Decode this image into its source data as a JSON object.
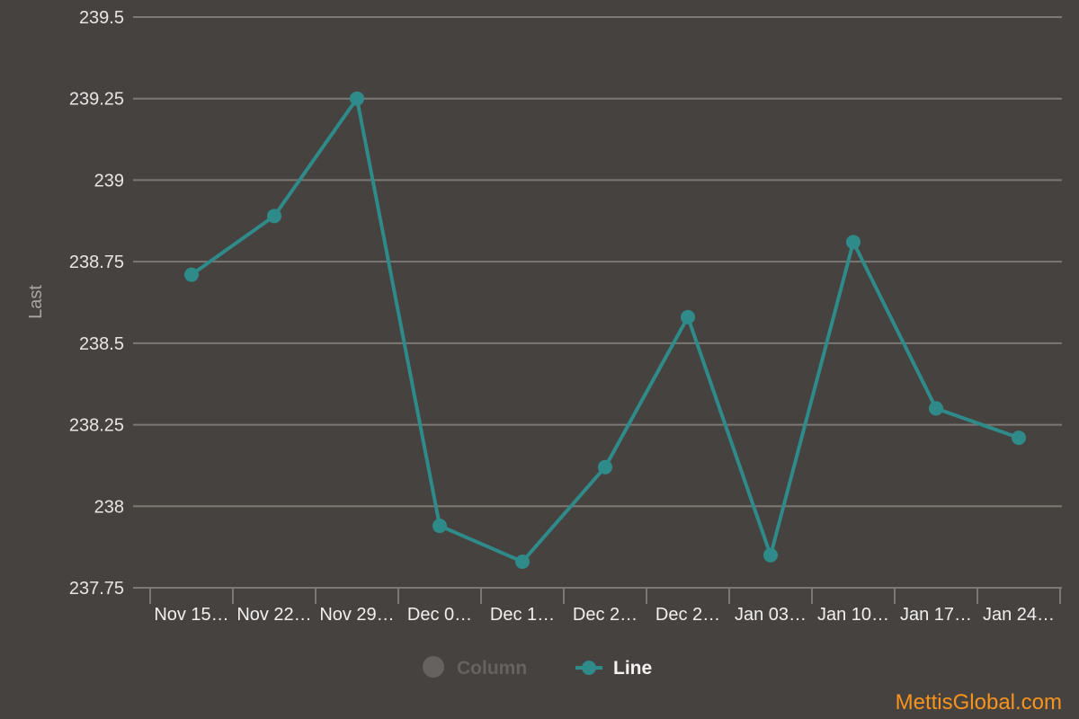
{
  "colors": {
    "background": "#46423f",
    "grid": "#7c7874",
    "line": "#2f8a8a",
    "legend_inactive": "#66625f",
    "brand": "#f7941d"
  },
  "legend": {
    "column_label": "Column",
    "line_label": "Line",
    "position": "bottom-center",
    "column_state": "hidden"
  },
  "brand_text": "MettisGlobal.com",
  "chart_data": {
    "type": "line",
    "ylabel": "Last",
    "xlabel": "",
    "ylim": [
      237.75,
      239.5
    ],
    "yticks": [
      "237.75",
      "238",
      "238.25",
      "238.5",
      "238.75",
      "239",
      "239.25",
      "239.5"
    ],
    "grid": true,
    "categories": [
      "Nov 15…",
      "Nov 22…",
      "Nov 29…",
      "Dec 0…",
      "Dec 1…",
      "Dec 2…",
      "Dec 2…",
      "Jan 03…",
      "Jan 10…",
      "Jan 17…",
      "Jan 24…"
    ],
    "series": [
      {
        "name": "Line",
        "values": [
          238.71,
          238.89,
          239.25,
          237.94,
          237.83,
          238.12,
          238.58,
          237.85,
          238.81,
          238.3,
          238.21
        ]
      }
    ]
  }
}
